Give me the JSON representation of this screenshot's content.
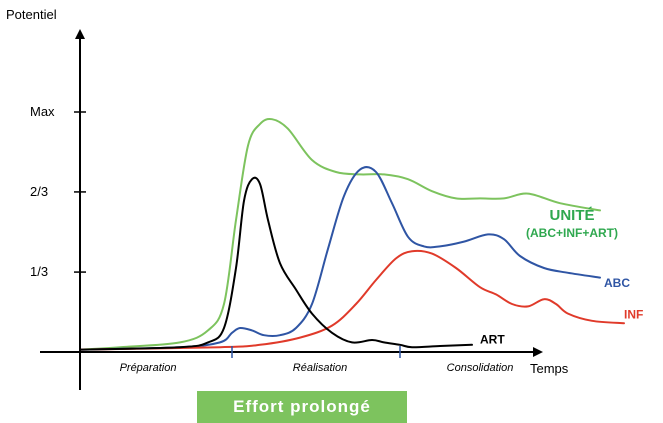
{
  "chart_data": {
    "type": "line",
    "ylabel": "Potentiel",
    "xlabel": "Temps",
    "yticks": [
      {
        "label": "1/3",
        "value": 0.333
      },
      {
        "label": "2/3",
        "value": 0.667
      },
      {
        "label": "Max",
        "value": 1.0
      }
    ],
    "ylim": [
      -0.12,
      1.25
    ],
    "xlim": [
      -0.05,
      1.36
    ],
    "phases": [
      {
        "label": "Préparation",
        "center": 0.17
      },
      {
        "label": "Réalisation",
        "center": 0.6
      },
      {
        "label": "Consolidation",
        "center": 1.0
      }
    ],
    "phase_boundaries": [
      0.38,
      0.8
    ],
    "banner": "Effort prolongé",
    "series": [
      {
        "name": "UNITÉ",
        "subname": "(ABC+INF+ART)",
        "color": "#7DC35E",
        "label_color": "#2FA84F",
        "label_pos": [
          1.23,
          0.55
        ],
        "x": [
          0.0,
          0.1,
          0.25,
          0.32,
          0.36,
          0.39,
          0.42,
          0.45,
          0.48,
          0.52,
          0.58,
          0.64,
          0.7,
          0.76,
          0.82,
          0.88,
          0.94,
          1.0,
          1.06,
          1.12,
          1.2,
          1.3
        ],
        "y": [
          0.01,
          0.02,
          0.04,
          0.09,
          0.2,
          0.55,
          0.86,
          0.95,
          0.97,
          0.93,
          0.8,
          0.75,
          0.74,
          0.74,
          0.72,
          0.67,
          0.64,
          0.64,
          0.64,
          0.66,
          0.62,
          0.59
        ]
      },
      {
        "name": "ABC",
        "color": "#2F55A4",
        "label_color": "#2F55A4",
        "label_pos": [
          1.31,
          0.27
        ],
        "x": [
          0.0,
          0.25,
          0.35,
          0.38,
          0.4,
          0.43,
          0.46,
          0.5,
          0.54,
          0.58,
          0.62,
          0.66,
          0.7,
          0.74,
          0.78,
          0.82,
          0.86,
          0.9,
          0.96,
          1.02,
          1.06,
          1.1,
          1.16,
          1.22,
          1.3
        ],
        "y": [
          0.01,
          0.02,
          0.04,
          0.08,
          0.1,
          0.09,
          0.07,
          0.07,
          0.1,
          0.2,
          0.43,
          0.65,
          0.76,
          0.75,
          0.62,
          0.48,
          0.44,
          0.44,
          0.46,
          0.49,
          0.47,
          0.4,
          0.35,
          0.33,
          0.31
        ]
      },
      {
        "name": "INF",
        "color": "#E03A2A",
        "label_color": "#E03A2A",
        "label_pos": [
          1.36,
          0.14
        ],
        "x": [
          0.0,
          0.35,
          0.45,
          0.55,
          0.63,
          0.69,
          0.74,
          0.79,
          0.83,
          0.88,
          0.94,
          1.0,
          1.04,
          1.08,
          1.12,
          1.16,
          1.19,
          1.22,
          1.28,
          1.36
        ],
        "y": [
          0.01,
          0.02,
          0.03,
          0.06,
          0.11,
          0.2,
          0.3,
          0.39,
          0.42,
          0.41,
          0.35,
          0.27,
          0.24,
          0.2,
          0.19,
          0.22,
          0.2,
          0.16,
          0.13,
          0.12
        ]
      },
      {
        "name": "ART",
        "color": "#000000",
        "label_color": "#000000",
        "label_pos": [
          1.0,
          0.035
        ],
        "x": [
          0.0,
          0.25,
          0.32,
          0.36,
          0.39,
          0.41,
          0.43,
          0.45,
          0.47,
          0.5,
          0.54,
          0.58,
          0.63,
          0.68,
          0.73,
          0.76,
          0.8,
          0.83,
          0.9,
          0.98
        ],
        "y": [
          0.01,
          0.02,
          0.04,
          0.1,
          0.35,
          0.63,
          0.72,
          0.7,
          0.55,
          0.37,
          0.26,
          0.16,
          0.08,
          0.04,
          0.05,
          0.04,
          0.03,
          0.02,
          0.025,
          0.03
        ]
      }
    ]
  },
  "colors": {
    "axis": "#000000",
    "banner_bg": "#7DC35E",
    "phase_tick": "#2F55A4"
  }
}
